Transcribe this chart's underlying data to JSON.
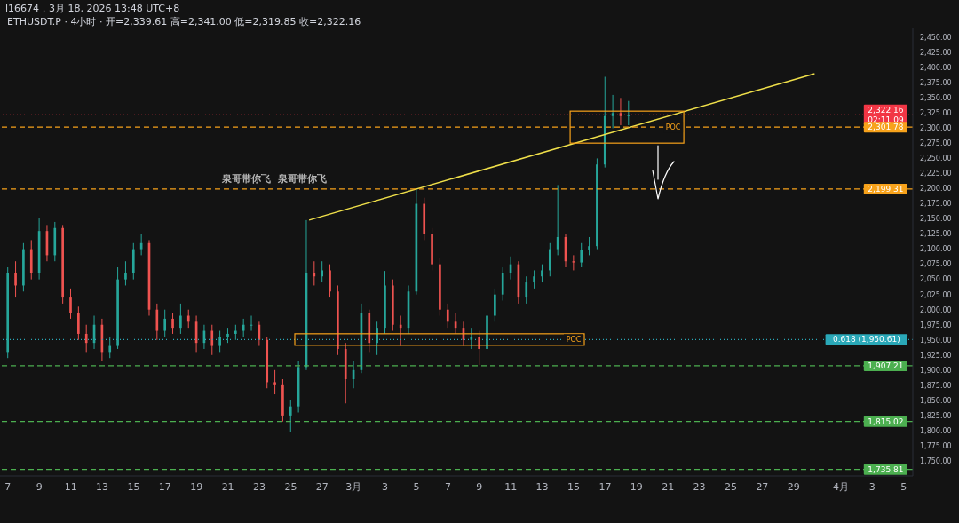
{
  "chart_data": {
    "type": "candlestick",
    "title": "l16674，3月 18, 2026 13:48 UTC+8",
    "subtitle": "ETHUSDT.P · 4小时 · 开=2,339.61 高=2,341.00 低=2,319.85 收=2,322.16",
    "x": [
      "2026-02-07T00:00",
      "2026-02-07T12:00",
      "2026-02-08T00:00",
      "2026-02-08T12:00",
      "2026-02-09T00:00",
      "2026-02-09T12:00",
      "2026-02-10T00:00",
      "2026-02-10T12:00",
      "2026-02-11T00:00",
      "2026-02-11T12:00",
      "2026-02-12T00:00",
      "2026-02-12T12:00",
      "2026-02-13T00:00",
      "2026-02-13T12:00",
      "2026-02-14T00:00",
      "2026-02-14T12:00",
      "2026-02-15T00:00",
      "2026-02-15T12:00",
      "2026-02-16T00:00",
      "2026-02-16T12:00",
      "2026-02-17T00:00",
      "2026-02-17T12:00",
      "2026-02-18T00:00",
      "2026-02-18T12:00",
      "2026-02-19T00:00",
      "2026-02-19T12:00",
      "2026-02-20T00:00",
      "2026-02-20T12:00",
      "2026-02-21T00:00",
      "2026-02-21T12:00",
      "2026-02-22T00:00",
      "2026-02-22T12:00",
      "2026-02-23T00:00",
      "2026-02-23T12:00",
      "2026-02-24T00:00",
      "2026-02-24T12:00",
      "2026-02-25T00:00",
      "2026-02-25T12:00",
      "2026-02-26T00:00",
      "2026-02-26T12:00",
      "2026-02-27T00:00",
      "2026-02-27T12:00",
      "2026-02-28T00:00",
      "2026-02-28T12:00",
      "2026-03-01T00:00",
      "2026-03-01T12:00",
      "2026-03-02T00:00",
      "2026-03-02T12:00",
      "2026-03-03T00:00",
      "2026-03-03T12:00",
      "2026-03-04T00:00",
      "2026-03-04T12:00",
      "2026-03-05T00:00",
      "2026-03-05T12:00",
      "2026-03-06T00:00",
      "2026-03-06T12:00",
      "2026-03-07T00:00",
      "2026-03-07T12:00",
      "2026-03-08T00:00",
      "2026-03-08T12:00",
      "2026-03-09T00:00",
      "2026-03-09T12:00",
      "2026-03-10T00:00",
      "2026-03-10T12:00",
      "2026-03-11T00:00",
      "2026-03-11T12:00",
      "2026-03-12T00:00",
      "2026-03-12T12:00",
      "2026-03-13T00:00",
      "2026-03-13T12:00",
      "2026-03-14T00:00",
      "2026-03-14T12:00",
      "2026-03-15T00:00",
      "2026-03-15T12:00",
      "2026-03-16T00:00",
      "2026-03-16T12:00",
      "2026-03-17T00:00",
      "2026-03-17T12:00",
      "2026-03-18T00:00",
      "2026-03-18T12:00"
    ],
    "ohlc": [
      [
        1930,
        2070,
        1920,
        2060
      ],
      [
        2060,
        2080,
        2020,
        2040
      ],
      [
        2040,
        2110,
        2030,
        2100
      ],
      [
        2100,
        2115,
        2050,
        2060
      ],
      [
        2060,
        2151,
        2050,
        2130
      ],
      [
        2130,
        2140,
        2080,
        2090
      ],
      [
        2090,
        2145,
        2080,
        2135
      ],
      [
        2135,
        2140,
        2010,
        2020
      ],
      [
        2020,
        2035,
        1985,
        1995
      ],
      [
        1995,
        2005,
        1950,
        1960
      ],
      [
        1960,
        1975,
        1930,
        1945
      ],
      [
        1945,
        1990,
        1935,
        1975
      ],
      [
        1975,
        1985,
        1915,
        1930
      ],
      [
        1930,
        1955,
        1920,
        1940
      ],
      [
        1940,
        2070,
        1935,
        2050
      ],
      [
        2050,
        2080,
        2040,
        2060
      ],
      [
        2060,
        2110,
        2050,
        2100
      ],
      [
        2100,
        2125,
        2090,
        2110
      ],
      [
        2110,
        2115,
        1990,
        2000
      ],
      [
        2000,
        2010,
        1950,
        1965
      ],
      [
        1965,
        2000,
        1955,
        1985
      ],
      [
        1985,
        1995,
        1960,
        1970
      ],
      [
        1970,
        2010,
        1960,
        1990
      ],
      [
        1990,
        2000,
        1970,
        1980
      ],
      [
        1980,
        1990,
        1930,
        1945
      ],
      [
        1945,
        1975,
        1935,
        1965
      ],
      [
        1965,
        1975,
        1925,
        1940
      ],
      [
        1940,
        1965,
        1930,
        1955
      ],
      [
        1955,
        1970,
        1945,
        1960
      ],
      [
        1960,
        1975,
        1950,
        1965
      ],
      [
        1965,
        1985,
        1955,
        1975
      ],
      [
        1975,
        1990,
        1965,
        1975
      ],
      [
        1975,
        1980,
        1940,
        1950
      ],
      [
        1950,
        1955,
        1870,
        1880
      ],
      [
        1880,
        1900,
        1860,
        1875
      ],
      [
        1875,
        1885,
        1815,
        1825
      ],
      [
        1825,
        1850,
        1797,
        1840
      ],
      [
        1840,
        1915,
        1830,
        1905
      ],
      [
        1905,
        2148,
        1900,
        2060
      ],
      [
        2060,
        2080,
        2040,
        2055
      ],
      [
        2055,
        2080,
        2045,
        2065
      ],
      [
        2065,
        2075,
        2020,
        2030
      ],
      [
        2030,
        2040,
        1925,
        1935
      ],
      [
        1935,
        1945,
        1845,
        1885
      ],
      [
        1885,
        1915,
        1870,
        1900
      ],
      [
        1900,
        2010,
        1895,
        1995
      ],
      [
        1995,
        2000,
        1930,
        1945
      ],
      [
        1945,
        1980,
        1925,
        1970
      ],
      [
        1970,
        2064,
        1960,
        2040
      ],
      [
        2040,
        2050,
        1965,
        1975
      ],
      [
        1975,
        1990,
        1940,
        1970
      ],
      [
        1970,
        2040,
        1960,
        2030
      ],
      [
        2030,
        2199,
        2025,
        2175
      ],
      [
        2175,
        2185,
        2115,
        2125
      ],
      [
        2125,
        2135,
        2065,
        2075
      ],
      [
        2075,
        2085,
        1990,
        2000
      ],
      [
        2000,
        2010,
        1970,
        1980
      ],
      [
        1980,
        1995,
        1960,
        1970
      ],
      [
        1970,
        1980,
        1940,
        1950
      ],
      [
        1950,
        1970,
        1935,
        1955
      ],
      [
        1955,
        1965,
        1908,
        1935
      ],
      [
        1935,
        2000,
        1930,
        1990
      ],
      [
        1990,
        2035,
        1980,
        2025
      ],
      [
        2025,
        2070,
        2015,
        2060
      ],
      [
        2060,
        2088,
        2050,
        2075
      ],
      [
        2075,
        2080,
        2010,
        2020
      ],
      [
        2020,
        2055,
        2010,
        2045
      ],
      [
        2045,
        2065,
        2035,
        2055
      ],
      [
        2055,
        2075,
        2045,
        2065
      ],
      [
        2065,
        2110,
        2055,
        2100
      ],
      [
        2100,
        2206,
        2090,
        2120
      ],
      [
        2120,
        2125,
        2070,
        2080
      ],
      [
        2080,
        2090,
        2065,
        2078
      ],
      [
        2078,
        2110,
        2070,
        2098
      ],
      [
        2098,
        2120,
        2090,
        2105
      ],
      [
        2105,
        2250,
        2100,
        2240
      ],
      [
        2240,
        2385,
        2235,
        2320
      ],
      [
        2320,
        2355,
        2300,
        2325
      ],
      [
        2325,
        2350,
        2305,
        2320
      ],
      [
        2320,
        2345,
        2305,
        2322.16
      ]
    ],
    "series": [
      {
        "type": "line",
        "x": [
          "2026-02-26T04:00",
          "2026-03-30T08:00"
        ],
        "values": [
          2148,
          2390
        ],
        "color": "#f0e04a"
      }
    ],
    "xlim": [
      "2026-02-06T12:00",
      "2026-04-05T14:00"
    ],
    "xticks": [
      {
        "value": "2026-02-07",
        "label": "7"
      },
      {
        "value": "2026-02-09",
        "label": "9"
      },
      {
        "value": "2026-02-11",
        "label": "11"
      },
      {
        "value": "2026-02-13",
        "label": "13"
      },
      {
        "value": "2026-02-15",
        "label": "15"
      },
      {
        "value": "2026-02-17",
        "label": "17"
      },
      {
        "value": "2026-02-19",
        "label": "19"
      },
      {
        "value": "2026-02-21",
        "label": "21"
      },
      {
        "value": "2026-02-23",
        "label": "23"
      },
      {
        "value": "2026-02-25",
        "label": "25"
      },
      {
        "value": "2026-02-27",
        "label": "27"
      },
      {
        "value": "2026-03-01",
        "label": "3月"
      },
      {
        "value": "2026-03-03",
        "label": "3"
      },
      {
        "value": "2026-03-05",
        "label": "5"
      },
      {
        "value": "2026-03-07",
        "label": "7"
      },
      {
        "value": "2026-03-09",
        "label": "9"
      },
      {
        "value": "2026-03-11",
        "label": "11"
      },
      {
        "value": "2026-03-13",
        "label": "13"
      },
      {
        "value": "2026-03-15",
        "label": "15"
      },
      {
        "value": "2026-03-17",
        "label": "17"
      },
      {
        "value": "2026-03-19",
        "label": "19"
      },
      {
        "value": "2026-03-21",
        "label": "21"
      },
      {
        "value": "2026-03-23",
        "label": "23"
      },
      {
        "value": "2026-03-25",
        "label": "25"
      },
      {
        "value": "2026-03-27",
        "label": "27"
      },
      {
        "value": "2026-03-29",
        "label": "29"
      },
      {
        "value": "2026-04-01",
        "label": "4月"
      },
      {
        "value": "2026-04-03",
        "label": "3"
      },
      {
        "value": "2026-04-05",
        "label": "5"
      }
    ],
    "ylim": [
      1725,
      2465
    ],
    "yticks": [
      {
        "value": 1750,
        "label": "1,750.00"
      },
      {
        "value": 1775,
        "label": "1,775.00"
      },
      {
        "value": 1800,
        "label": "1,800.00"
      },
      {
        "value": 1825,
        "label": "1,825.00"
      },
      {
        "value": 1850,
        "label": "1,850.00"
      },
      {
        "value": 1875,
        "label": "1,875.00"
      },
      {
        "value": 1900,
        "label": "1,900.00"
      },
      {
        "value": 1925,
        "label": "1,925.00"
      },
      {
        "value": 1950,
        "label": "1,950.00"
      },
      {
        "value": 1975,
        "label": "1,975.00"
      },
      {
        "value": 2000,
        "label": "2,000.00"
      },
      {
        "value": 2025,
        "label": "2,025.00"
      },
      {
        "value": 2050,
        "label": "2,050.00"
      },
      {
        "value": 2075,
        "label": "2,075.00"
      },
      {
        "value": 2100,
        "label": "2,100.00"
      },
      {
        "value": 2125,
        "label": "2,125.00"
      },
      {
        "value": 2150,
        "label": "2,150.00"
      },
      {
        "value": 2175,
        "label": "2,175.00"
      },
      {
        "value": 2200,
        "label": "2,200.00"
      },
      {
        "value": 2225,
        "label": "2,225.00"
      },
      {
        "value": 2250,
        "label": "2,250.00"
      },
      {
        "value": 2275,
        "label": "2,275.00"
      },
      {
        "value": 2300,
        "label": "2,300.00"
      },
      {
        "value": 2325,
        "label": "2,325.00"
      },
      {
        "value": 2350,
        "label": "2,350.00"
      },
      {
        "value": 2375,
        "label": "2,375.00"
      },
      {
        "value": 2400,
        "label": "2,400.00"
      },
      {
        "value": 2425,
        "label": "2,425.00"
      },
      {
        "value": 2450,
        "label": "2,450.00"
      }
    ],
    "ref_lines": [
      {
        "axis": "y",
        "value": 2322.16,
        "label": "2,322.16\n02:11:09",
        "color": "#f23645",
        "line_style": "dotted"
      },
      {
        "axis": "y",
        "value": 2301.78,
        "label": "2,301.78",
        "color": "#f7a21b",
        "line_style": "dashed"
      },
      {
        "axis": "y",
        "value": 2199.31,
        "label": "2,199.31",
        "color": "#f7a21b",
        "line_style": "dashed"
      },
      {
        "axis": "y",
        "value": 1950.61,
        "label": "0.618 (1,950.61)",
        "color": "#2aa8b8",
        "line_style": "dotted"
      },
      {
        "axis": "y",
        "value": 1907.21,
        "label": "1,907.21",
        "color": "#4caf50",
        "line_style": "dashed"
      },
      {
        "axis": "y",
        "value": 1815.02,
        "label": "1,815.02",
        "color": "#4caf50",
        "line_style": "dashed"
      },
      {
        "axis": "y",
        "value": 1735.81,
        "label": "1,735.81",
        "color": "#4caf50",
        "line_style": "dashed"
      }
    ],
    "annotations": [
      {
        "text": "POC",
        "x": "2026-03-21T08:00",
        "y": 2301.78
      },
      {
        "text": "POC",
        "x": "2026-03-15T00:00",
        "y": 1950.61
      },
      "泉哥带你飞  泉哥带你飞"
    ]
  }
}
